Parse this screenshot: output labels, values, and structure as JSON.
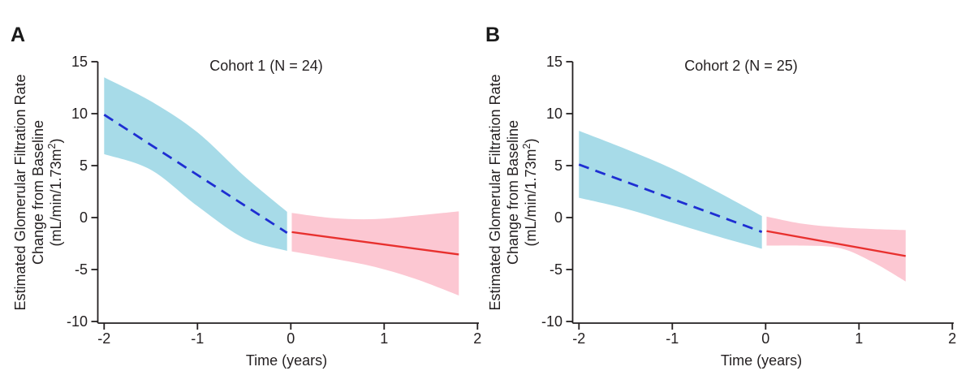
{
  "figure": {
    "background": "#ffffff",
    "axis_color": "#231f20",
    "text_color": "#231f20"
  },
  "chart_data": [
    {
      "type": "line",
      "panel_letter": "A",
      "title": "Cohort 1 (N = 24)",
      "xlabel": "Time (years)",
      "ylabel_lines": [
        "Estimated Glomerular Filtration Rate",
        "Change from Baseline"
      ],
      "ylabel_unit": {
        "pre": "(mL/min/1.73m",
        "sup": "2",
        "post": ")"
      },
      "xlim": [
        -2,
        2
      ],
      "ylim": [
        -10,
        15
      ],
      "xticks": [
        -2,
        -1,
        0,
        1,
        2
      ],
      "yticks": [
        15,
        10,
        5,
        0,
        -5,
        -10
      ],
      "grid": false,
      "legend": null,
      "series": [
        {
          "name": "pre-baseline-fit-with-95ci",
          "style": "dashed",
          "line_color": "#1e2ed2",
          "band_color": "#a7dbe8",
          "line": [
            [
              -2,
              9.9
            ],
            [
              -0.04,
              -1.47
            ]
          ],
          "band_top": [
            [
              -2,
              13.5
            ],
            [
              -1.5,
              11.2
            ],
            [
              -1,
              8.2
            ],
            [
              -0.5,
              4.0
            ],
            [
              -0.04,
              0.55
            ]
          ],
          "band_bottom": [
            [
              -2,
              6.1
            ],
            [
              -1.5,
              4.6
            ],
            [
              -1,
              1.1
            ],
            [
              -0.5,
              -2.0
            ],
            [
              -0.04,
              -3.2
            ]
          ]
        },
        {
          "name": "post-baseline-fit-with-95ci",
          "style": "solid",
          "line_color": "#e8302e",
          "band_color": "#fcc7d2",
          "line": [
            [
              0.01,
              -1.4
            ],
            [
              1.8,
              -3.55
            ]
          ],
          "band_top": [
            [
              0.01,
              0.45
            ],
            [
              0.45,
              -0.05
            ],
            [
              0.9,
              -0.15
            ],
            [
              1.35,
              0.2
            ],
            [
              1.8,
              0.6
            ]
          ],
          "band_bottom": [
            [
              0.01,
              -3.25
            ],
            [
              0.45,
              -3.95
            ],
            [
              0.9,
              -4.75
            ],
            [
              1.35,
              -5.95
            ],
            [
              1.8,
              -7.5
            ]
          ]
        }
      ]
    },
    {
      "type": "line",
      "panel_letter": "B",
      "title": "Cohort 2 (N = 25)",
      "xlabel": "Time (years)",
      "ylabel_lines": [
        "Estimated Glomerular Filtration Rate",
        "Change from Baseline"
      ],
      "ylabel_unit": {
        "pre": "(mL/min/1.73m",
        "sup": "2",
        "post": ")"
      },
      "xlim": [
        -2,
        2
      ],
      "ylim": [
        -10,
        15
      ],
      "xticks": [
        -2,
        -1,
        0,
        1,
        2
      ],
      "yticks": [
        15,
        10,
        5,
        0,
        -5,
        -10
      ],
      "grid": false,
      "legend": null,
      "series": [
        {
          "name": "pre-baseline-fit-with-95ci",
          "style": "dashed",
          "line_color": "#1e2ed2",
          "band_color": "#a7dbe8",
          "line": [
            [
              -2,
              5.1
            ],
            [
              -0.04,
              -1.38
            ]
          ],
          "band_top": [
            [
              -2,
              8.35
            ],
            [
              -1.5,
              6.6
            ],
            [
              -1,
              4.7
            ],
            [
              -0.5,
              2.4
            ],
            [
              -0.04,
              0.15
            ]
          ],
          "band_bottom": [
            [
              -2,
              1.9
            ],
            [
              -1.5,
              0.85
            ],
            [
              -1,
              -0.5
            ],
            [
              -0.5,
              -1.85
            ],
            [
              -0.04,
              -3.0
            ]
          ]
        },
        {
          "name": "post-baseline-fit-with-95ci",
          "style": "solid",
          "line_color": "#e8302e",
          "band_color": "#fcc7d2",
          "line": [
            [
              0.01,
              -1.3
            ],
            [
              1.5,
              -3.7
            ]
          ],
          "band_top": [
            [
              0.01,
              0.1
            ],
            [
              0.4,
              -0.6
            ],
            [
              0.8,
              -0.95
            ],
            [
              1.15,
              -1.1
            ],
            [
              1.5,
              -1.2
            ]
          ],
          "band_bottom": [
            [
              0.01,
              -2.7
            ],
            [
              0.4,
              -2.7
            ],
            [
              0.8,
              -2.95
            ],
            [
              1.15,
              -4.3
            ],
            [
              1.5,
              -6.15
            ]
          ]
        }
      ]
    }
  ]
}
